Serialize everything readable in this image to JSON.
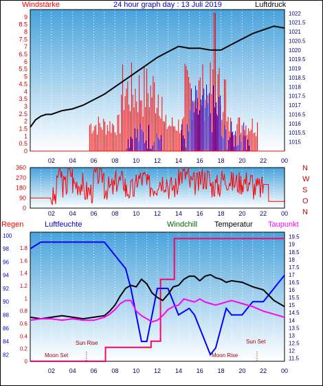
{
  "chart_data": [
    {
      "type": "line",
      "title": "24 hour graph day : 13 Juli 2019",
      "left_axis_label": "Windstärke",
      "right_axis_label": "Luftdruck",
      "x_ticks": [
        "02",
        "04",
        "06",
        "08",
        "10",
        "12",
        "14",
        "16",
        "18",
        "20",
        "22",
        "00"
      ],
      "left_ylim": [
        0,
        9.5
      ],
      "left_ticks": [
        "0",
        "0.5",
        "1",
        "1.5",
        "2",
        "2.5",
        "3",
        "3.5",
        "4",
        "4.5",
        "5",
        "5.5",
        "6",
        "6.5",
        "7",
        "7.5",
        "8",
        "8.5",
        "9"
      ],
      "right_ylim": [
        1014.5,
        1022.2
      ],
      "right_ticks": [
        "1015",
        "1015.5",
        "1016",
        "1016.5",
        "1017",
        "1017.5",
        "1018",
        "1018.5",
        "1019",
        "1019.5",
        "1020",
        "1020.5",
        "1021",
        "1021.5",
        "1022"
      ],
      "series": [
        {
          "name": "Luftdruck",
          "color": "#000000",
          "x": [
            0,
            0.5,
            1,
            1.5,
            2,
            3,
            4,
            5,
            6,
            7,
            8,
            9,
            10,
            11,
            12,
            13,
            14,
            15,
            16,
            17,
            18,
            19,
            20,
            21,
            22,
            23,
            24
          ],
          "y": [
            1015.8,
            1016.2,
            1016.4,
            1016.5,
            1016.5,
            1016.7,
            1016.8,
            1017.0,
            1017.3,
            1017.6,
            1018.0,
            1018.4,
            1018.8,
            1019.2,
            1019.6,
            1019.9,
            1020.2,
            1020.1,
            1020.1,
            1020.0,
            1020.0,
            1020.3,
            1020.6,
            1020.9,
            1021.1,
            1021.3,
            1021.2
          ]
        }
      ]
    },
    {
      "type": "line",
      "direction_letters": [
        "N",
        "W",
        "S",
        "O",
        "N"
      ],
      "left_ticks": [
        "0",
        "90",
        "180",
        "270",
        "360"
      ],
      "ylim": [
        0,
        360
      ],
      "series": [
        {
          "name": "Windrichtung",
          "color": "#ff0000",
          "x": [
            0,
            2,
            2.5,
            3,
            3.5,
            4,
            5,
            6,
            7,
            8,
            9,
            10,
            11,
            12,
            13,
            14,
            15,
            16,
            17,
            18,
            19,
            20,
            21,
            22,
            22.5,
            23,
            24
          ],
          "y": [
            90,
            90,
            300,
            200,
            320,
            220,
            150,
            300,
            180,
            240,
            160,
            260,
            200,
            250,
            190,
            300,
            220,
            270,
            200,
            260,
            230,
            240,
            180,
            210,
            60,
            60,
            60
          ]
        }
      ]
    },
    {
      "type": "line",
      "left_axis_label": "Regen",
      "labels": [
        "Luftfeuchte",
        "Windchill",
        "Temperatur",
        "Taupunkt"
      ],
      "left_ticks": [
        "0",
        "0.2",
        "0.4",
        "0.6",
        "0.8",
        "1",
        "1.2",
        "1.4",
        "1.6",
        "1.8"
      ],
      "humidity_ticks": [
        "82",
        "84",
        "86",
        "88",
        "90",
        "92",
        "94",
        "96",
        "98",
        "100"
      ],
      "right_ticks": [
        "11.5",
        "12",
        "12.5",
        "13",
        "13.5",
        "14",
        "14.5",
        "15",
        "15.5",
        "16",
        "16.5",
        "17",
        "17.5",
        "18",
        "18.5",
        "19",
        "19.5"
      ],
      "temp_ylim": [
        11.3,
        19.8
      ],
      "annotations": [
        "Sun Rise",
        "Sun Set",
        "Moon Set",
        "Moon Rise"
      ],
      "series": [
        {
          "name": "Luftfeuchte",
          "color": "#0000ff",
          "x": [
            0,
            1,
            2,
            3,
            4,
            5,
            6,
            7,
            8,
            8.5,
            9,
            9.5,
            10,
            10.5,
            11,
            11.5,
            12,
            12.5,
            13,
            13.5,
            14,
            15,
            15.5,
            16,
            16.5,
            17,
            17.5,
            18,
            18.5,
            19,
            19.5,
            20,
            20.5,
            21,
            22,
            22.5,
            23,
            23.5,
            24
          ],
          "y": [
            98,
            99,
            99,
            99,
            99,
            99,
            99,
            99,
            97,
            96,
            95,
            92,
            88,
            84,
            84,
            88,
            92,
            92,
            92,
            90,
            88,
            89,
            88,
            86,
            84,
            82,
            83,
            86,
            89,
            88,
            88,
            88,
            89,
            90,
            90,
            91,
            92,
            93,
            94
          ]
        },
        {
          "name": "Temperatur",
          "color": "#000000",
          "x": [
            0,
            1,
            2,
            3,
            4,
            5,
            6,
            7,
            7.5,
            8,
            8.5,
            9,
            9.5,
            10,
            10.5,
            11,
            11.5,
            12,
            12.5,
            13,
            13.5,
            14,
            14.5,
            15,
            15.5,
            16,
            16.5,
            17,
            17.5,
            18,
            18.5,
            19,
            20,
            21,
            22,
            23,
            24
          ],
          "y": [
            14.2,
            14.1,
            14.2,
            14.3,
            14.2,
            14.1,
            14.2,
            14.3,
            14.6,
            15.0,
            15.6,
            16.1,
            16.3,
            16.2,
            16.7,
            16.4,
            15.8,
            15.5,
            15.3,
            15.7,
            16.2,
            16.3,
            16.7,
            16.9,
            16.9,
            16.6,
            16.9,
            17.0,
            16.8,
            16.7,
            16.5,
            16.6,
            16.5,
            16.2,
            16.0,
            15.3,
            14.9
          ]
        },
        {
          "name": "Taupunkt",
          "color": "#ff00ff",
          "x": [
            0,
            1,
            2,
            3,
            4,
            5,
            6,
            7,
            7.5,
            8,
            8.5,
            9,
            9.5,
            10,
            10.5,
            11,
            11.5,
            12,
            12.5,
            13,
            13.5,
            14,
            14.5,
            15,
            15.5,
            16,
            16.5,
            17,
            17.5,
            18,
            18.5,
            19,
            20,
            21,
            22,
            23,
            24
          ],
          "y": [
            14.0,
            14.1,
            14.1,
            14.0,
            14.1,
            14.0,
            14.0,
            14.2,
            14.4,
            14.7,
            15.1,
            15.3,
            15.3,
            14.6,
            14.3,
            14.1,
            13.9,
            14.0,
            14.3,
            14.7,
            14.9,
            15.0,
            15.4,
            15.3,
            15.2,
            15.4,
            15.2,
            15.1,
            15.0,
            15.1,
            15.2,
            15.3,
            15.1,
            14.9,
            14.6,
            14.4,
            14.2
          ]
        },
        {
          "name": "Regen",
          "color": "#ff0066",
          "x": [
            0,
            7,
            7.1,
            11.3,
            11.4,
            12.2,
            12.3,
            13.5,
            13.6,
            24
          ],
          "y": [
            0,
            0,
            0.22,
            0.22,
            0.32,
            0.32,
            1.3,
            1.3,
            1.95,
            1.95
          ]
        }
      ]
    }
  ]
}
